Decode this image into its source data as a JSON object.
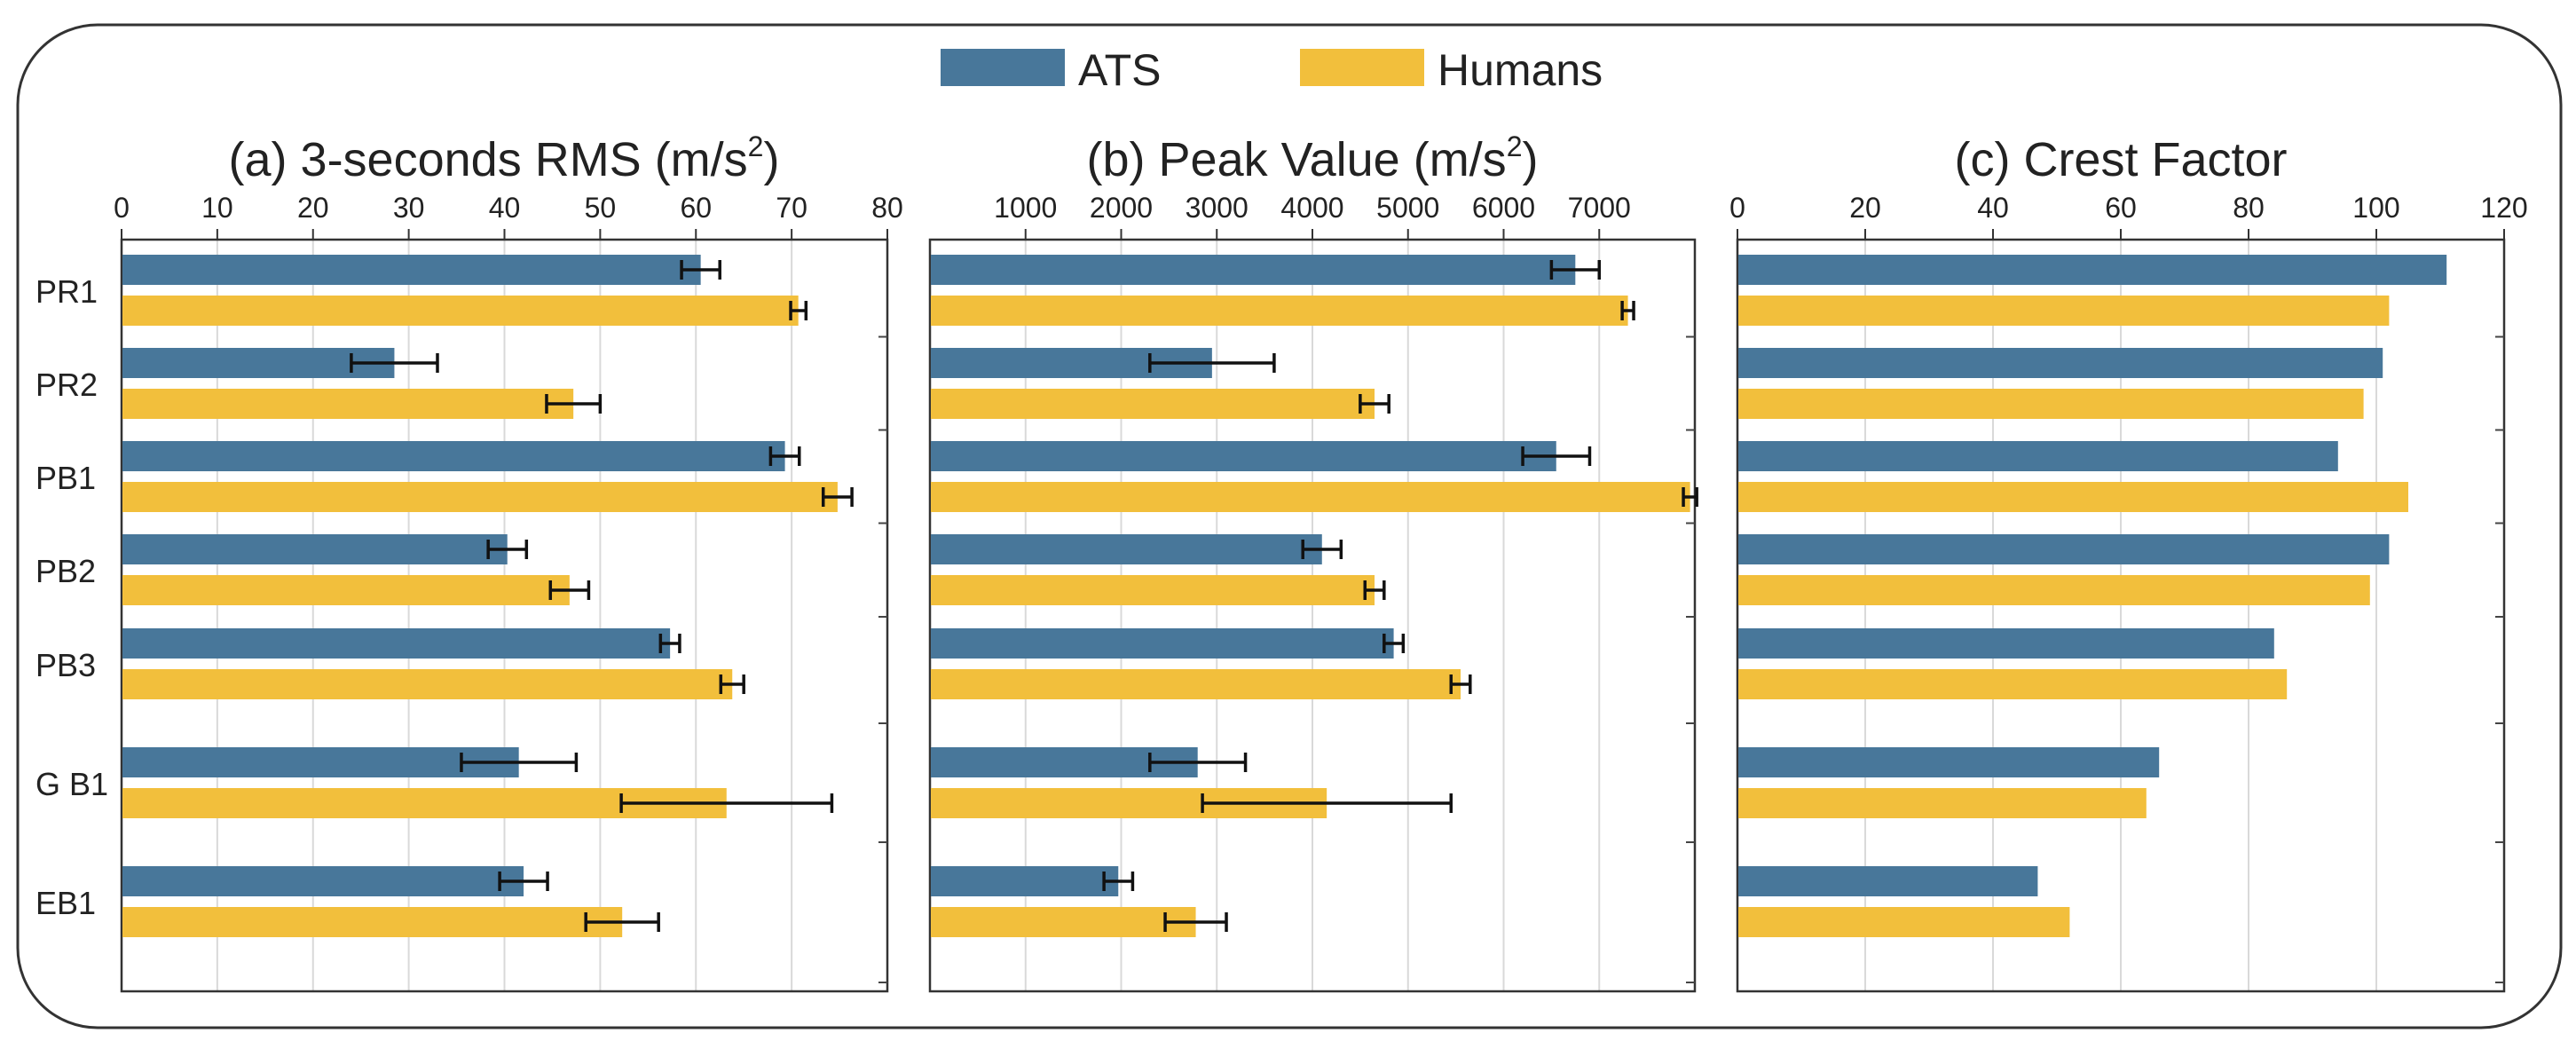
{
  "colors": {
    "ats": "#48779A",
    "humans": "#F2BF3C",
    "error": "#111111",
    "frame": "#333333",
    "grid": "#D9D9D9"
  },
  "legend": {
    "ats_label": "ATS",
    "humans_label": "Humans"
  },
  "chart_data": [
    {
      "type": "bar",
      "orientation": "horizontal",
      "title": "(a) 3-seconds RMS (m/s²)",
      "title_main": "(a) 3-seconds RMS (m/s",
      "title_sup": "2",
      "title_close": ")",
      "categories": [
        "PR1",
        "PR2",
        "PB1",
        "PB2",
        "PB3",
        "GB1",
        "EB1"
      ],
      "category_labels": [
        "PR1",
        "PR2",
        "PB1",
        "PB2",
        "PB3",
        "G B1",
        "EB1"
      ],
      "xlim": [
        0,
        80
      ],
      "ticks": [
        0,
        10,
        20,
        30,
        40,
        50,
        60,
        70,
        80
      ],
      "tick_labels": [
        "0",
        "10",
        "20",
        "30",
        "40",
        "50",
        "60",
        "70",
        "80"
      ],
      "series": [
        {
          "name": "ATS",
          "values": [
            60.5,
            28.5,
            69.3,
            40.3,
            57.3,
            41.5,
            42
          ],
          "errors": [
            2,
            4.5,
            1.5,
            2,
            1,
            6,
            2.5
          ]
        },
        {
          "name": "Humans",
          "values": [
            70.7,
            47.2,
            74.8,
            46.8,
            63.8,
            63.2,
            52.3
          ],
          "errors": [
            0.8,
            2.8,
            1.5,
            2,
            1.2,
            11,
            3.8
          ]
        }
      ]
    },
    {
      "type": "bar",
      "orientation": "horizontal",
      "title": "(b) Peak Value (m/s²)",
      "title_main": "(b) Peak Value (m/s",
      "title_sup": "2",
      "title_close": ")",
      "categories": [
        "PR1",
        "PR2",
        "PB1",
        "PB2",
        "PB3",
        "GB1",
        "EB1"
      ],
      "xlim": [
        0,
        8000
      ],
      "ticks": [
        1000,
        2000,
        3000,
        4000,
        5000,
        6000,
        7000
      ],
      "tick_labels": [
        "1000",
        "2000",
        "3000",
        "4000",
        "5000",
        "6000",
        "7000"
      ],
      "series": [
        {
          "name": "ATS",
          "values": [
            6750,
            2950,
            6550,
            4100,
            4850,
            2800,
            1970
          ],
          "errors": [
            250,
            650,
            350,
            200,
            100,
            500,
            150
          ]
        },
        {
          "name": "Humans",
          "values": [
            7300,
            4650,
            7950,
            4650,
            5550,
            4150,
            2780
          ],
          "errors": [
            60,
            150,
            70,
            100,
            100,
            1300,
            320
          ]
        }
      ]
    },
    {
      "type": "bar",
      "orientation": "horizontal",
      "title": "(c) Crest Factor",
      "categories": [
        "PR1",
        "PR2",
        "PB1",
        "PB2",
        "PB3",
        "GB1",
        "EB1"
      ],
      "xlim": [
        0,
        120
      ],
      "ticks": [
        0,
        20,
        40,
        60,
        80,
        100,
        120
      ],
      "tick_labels": [
        "0",
        "20",
        "40",
        "60",
        "80",
        "100",
        "120"
      ],
      "series": [
        {
          "name": "ATS",
          "values": [
            111,
            101,
            94,
            102,
            84,
            66,
            47
          ]
        },
        {
          "name": "Humans",
          "values": [
            102,
            98,
            105,
            99,
            86,
            64,
            52
          ]
        }
      ]
    }
  ]
}
